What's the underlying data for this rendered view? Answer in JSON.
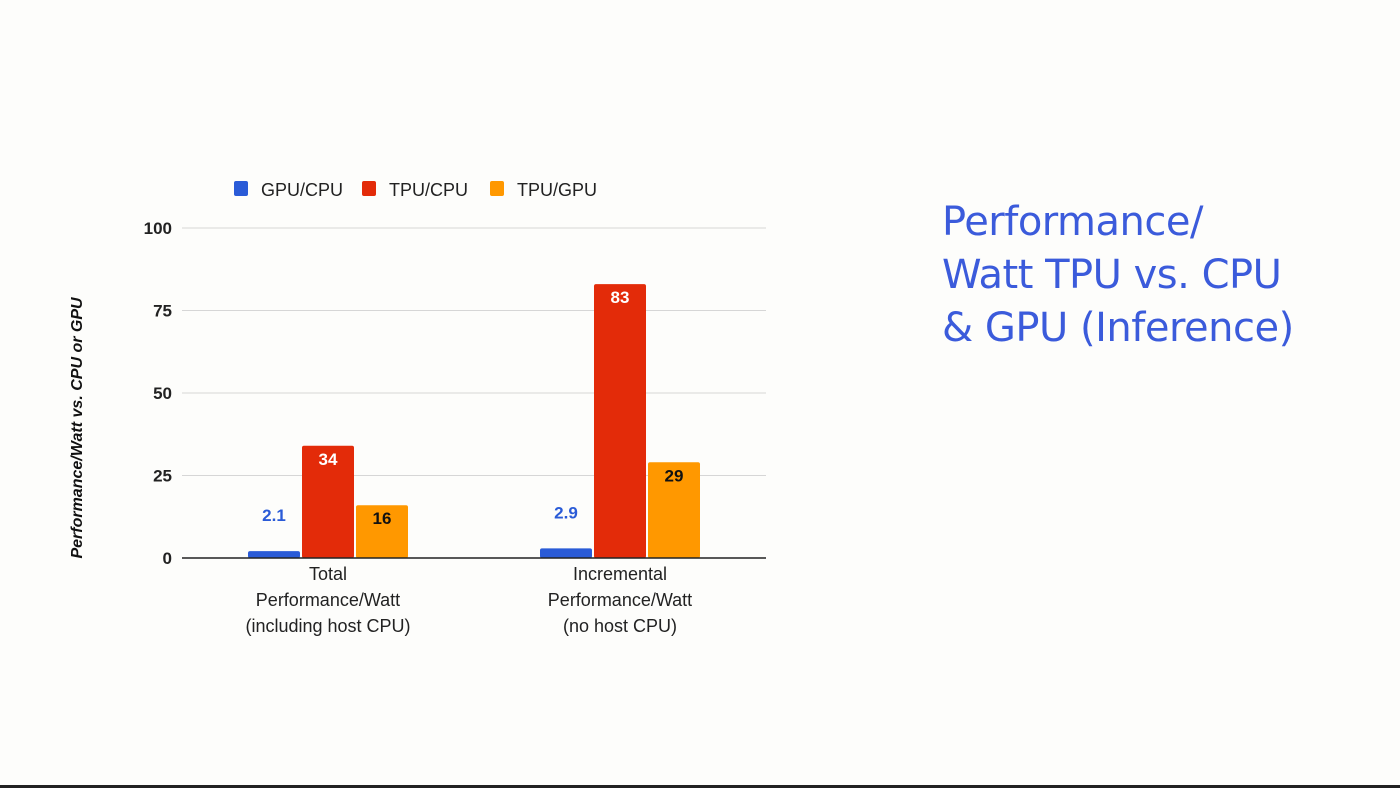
{
  "slide_title": {
    "line1": "Performance/",
    "line2": "Watt TPU vs. CPU",
    "line3": "& GPU (Inference)"
  },
  "chart_data": {
    "type": "bar",
    "title": "",
    "xlabel": "",
    "ylabel": "Performance/Watt vs. CPU or GPU",
    "ylim": [
      0,
      100
    ],
    "yticks": [
      0,
      25,
      50,
      75,
      100
    ],
    "grid": true,
    "legend_position": "top",
    "categories": [
      [
        "Total",
        "Performance/Watt",
        "(including host CPU)"
      ],
      [
        "Incremental",
        "Performance/Watt",
        "(no host CPU)"
      ]
    ],
    "series": [
      {
        "name": "GPU/CPU",
        "color": "#2a5bd7",
        "values": [
          2.1,
          2.9
        ],
        "labels": [
          "2.1",
          "2.9"
        ]
      },
      {
        "name": "TPU/CPU",
        "color": "#e32b09",
        "values": [
          34,
          83
        ],
        "labels": [
          "34",
          "83"
        ]
      },
      {
        "name": "TPU/GPU",
        "color": "#ff9800",
        "values": [
          16,
          29
        ],
        "labels": [
          "16",
          "29"
        ]
      }
    ]
  }
}
